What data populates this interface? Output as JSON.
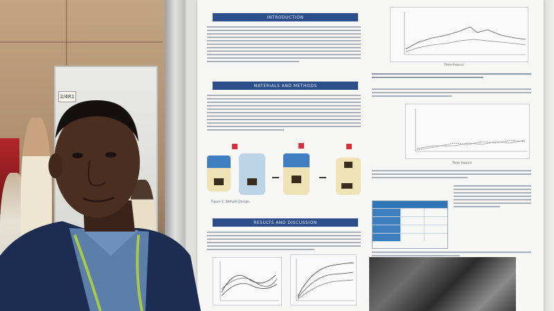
{
  "booth": {
    "label": "2/4R1"
  },
  "poster": {
    "sections": {
      "introduction": "INTRODUCTION",
      "methods": "MATERIALS AND METHODS",
      "results": "RESULTS AND DISCUSSION"
    },
    "figure1_caption": "Figure 1: Sample Design.",
    "chart1_xlabel": "Time (hours)",
    "chart2_xlabel": "Time (hours)"
  },
  "colors": {
    "section_header": "#2c4e8a",
    "table_header": "#2f74b5",
    "jar_lid_blue": "#3f7fc1",
    "jar_body_cream": "#efe3b5",
    "marker_red": "#d8303a"
  }
}
